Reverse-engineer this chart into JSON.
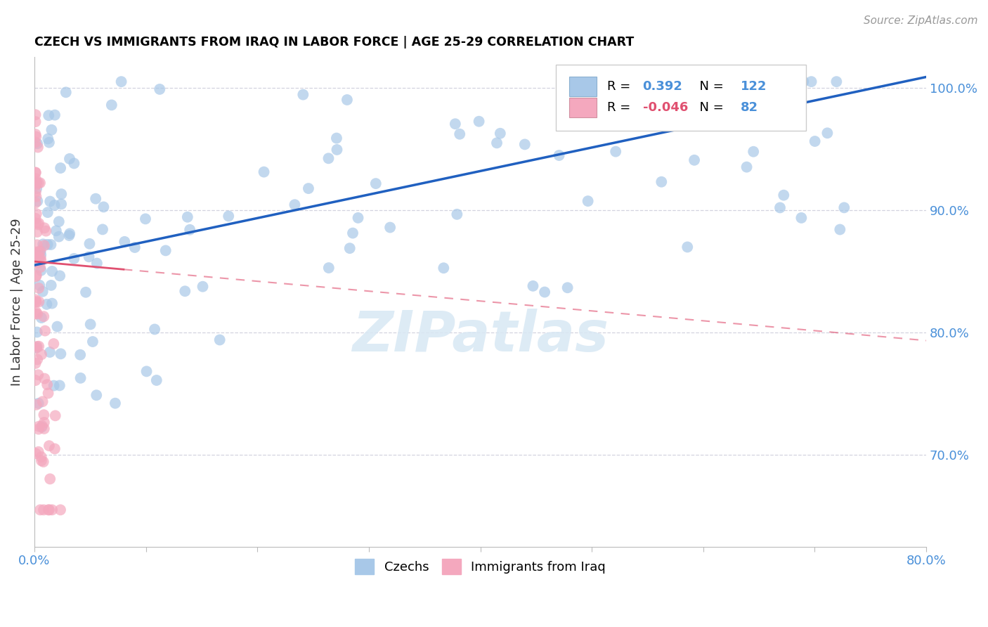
{
  "title": "CZECH VS IMMIGRANTS FROM IRAQ IN LABOR FORCE | AGE 25-29 CORRELATION CHART",
  "source": "Source: ZipAtlas.com",
  "ylabel": "In Labor Force | Age 25-29",
  "legend_blue_label": "Czechs",
  "legend_pink_label": "Immigrants from Iraq",
  "R_blue": 0.392,
  "N_blue": 122,
  "R_pink": -0.046,
  "N_pink": 82,
  "blue_color": "#a8c8e8",
  "pink_color": "#f4a8be",
  "trendline_blue": "#2060c0",
  "trendline_pink": "#e05070",
  "watermark": "ZIPatlas",
  "xlim": [
    0.0,
    0.8
  ],
  "ylim": [
    0.625,
    1.025
  ],
  "yticks": [
    0.7,
    0.8,
    0.9,
    1.0
  ],
  "xtick_labels_show": [
    0.0,
    0.8
  ],
  "seed_blue": 77,
  "seed_pink": 99
}
